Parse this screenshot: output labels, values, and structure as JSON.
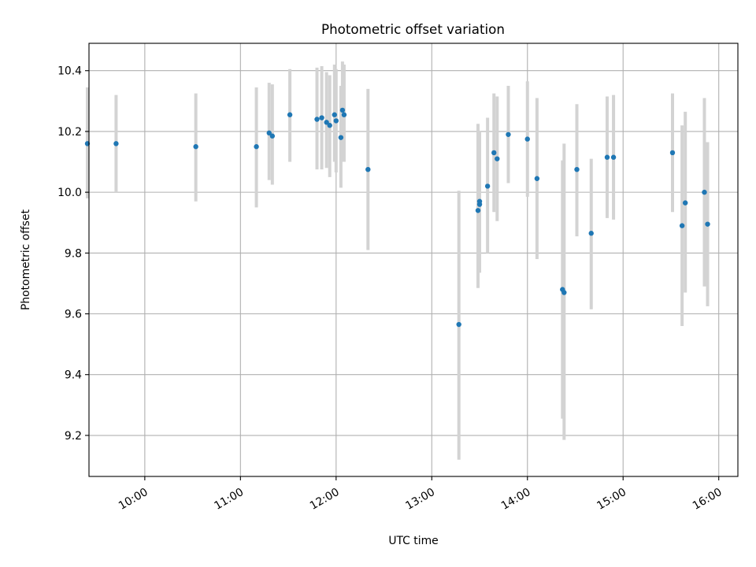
{
  "chart_data": {
    "type": "scatter",
    "title": "Photometric offset variation",
    "xlabel": "UTC time",
    "ylabel": "Photometric offset",
    "x_tick_labels": [
      "10:00",
      "11:00",
      "12:00",
      "13:00",
      "14:00",
      "15:00",
      "16:00"
    ],
    "x_ticks": [
      "10:00",
      "11:00",
      "12:00",
      "13:00",
      "14:00",
      "15:00",
      "16:00"
    ],
    "y_ticks": [
      9.2,
      9.4,
      9.6,
      9.8,
      10.0,
      10.2,
      10.4
    ],
    "y_tick_labels": [
      "9.2",
      "9.4",
      "9.6",
      "9.8",
      "10.0",
      "10.2",
      "10.4"
    ],
    "xlim": [
      "09:25",
      "16:12"
    ],
    "ylim": [
      9.065,
      10.49
    ],
    "grid": true,
    "marker_color": "#1f77b4",
    "errorbar_color": "#d3d3d3",
    "points": [
      {
        "time": "09:24",
        "offset": 10.16,
        "err_low": 9.98,
        "err_high": 10.345
      },
      {
        "time": "09:42",
        "offset": 10.16,
        "err_low": 10.0,
        "err_high": 10.32
      },
      {
        "time": "10:32",
        "offset": 10.15,
        "err_low": 9.97,
        "err_high": 10.325
      },
      {
        "time": "11:10",
        "offset": 10.15,
        "err_low": 9.95,
        "err_high": 10.345
      },
      {
        "time": "11:18",
        "offset": 10.195,
        "err_low": 10.04,
        "err_high": 10.36
      },
      {
        "time": "11:20",
        "offset": 10.185,
        "err_low": 10.025,
        "err_high": 10.355
      },
      {
        "time": "11:31",
        "offset": 10.255,
        "err_low": 10.1,
        "err_high": 10.405
      },
      {
        "time": "11:48",
        "offset": 10.24,
        "err_low": 10.075,
        "err_high": 10.41
      },
      {
        "time": "11:51",
        "offset": 10.245,
        "err_low": 10.075,
        "err_high": 10.415
      },
      {
        "time": "11:54",
        "offset": 10.23,
        "err_low": 10.08,
        "err_high": 10.395
      },
      {
        "time": "11:56",
        "offset": 10.22,
        "err_low": 10.05,
        "err_high": 10.385
      },
      {
        "time": "11:59",
        "offset": 10.255,
        "err_low": 10.1,
        "err_high": 10.42
      },
      {
        "time": "12:00",
        "offset": 10.235,
        "err_low": 10.065,
        "err_high": 10.405
      },
      {
        "time": "12:03",
        "offset": 10.18,
        "err_low": 10.015,
        "err_high": 10.35
      },
      {
        "time": "12:04",
        "offset": 10.27,
        "err_low": 10.1,
        "err_high": 10.43
      },
      {
        "time": "12:05",
        "offset": 10.255,
        "err_low": 10.1,
        "err_high": 10.42
      },
      {
        "time": "12:20",
        "offset": 10.075,
        "err_low": 9.81,
        "err_high": 10.34
      },
      {
        "time": "13:17",
        "offset": 9.565,
        "err_low": 9.12,
        "err_high": 10.005
      },
      {
        "time": "13:29",
        "offset": 9.94,
        "err_low": 9.685,
        "err_high": 10.225
      },
      {
        "time": "13:30",
        "offset": 9.96,
        "err_low": 9.735,
        "err_high": 10.195
      },
      {
        "time": "13:30",
        "offset": 9.97,
        "err_low": 9.745,
        "err_high": 10.2
      },
      {
        "time": "13:35",
        "offset": 10.02,
        "err_low": 9.8,
        "err_high": 10.245
      },
      {
        "time": "13:39",
        "offset": 10.13,
        "err_low": 9.935,
        "err_high": 10.325
      },
      {
        "time": "13:41",
        "offset": 10.11,
        "err_low": 9.905,
        "err_high": 10.315
      },
      {
        "time": "13:48",
        "offset": 10.19,
        "err_low": 10.03,
        "err_high": 10.35
      },
      {
        "time": "14:00",
        "offset": 10.175,
        "err_low": 9.985,
        "err_high": 10.365
      },
      {
        "time": "14:06",
        "offset": 10.045,
        "err_low": 9.78,
        "err_high": 10.31
      },
      {
        "time": "14:22",
        "offset": 9.68,
        "err_low": 9.255,
        "err_high": 10.105
      },
      {
        "time": "14:23",
        "offset": 9.67,
        "err_low": 9.185,
        "err_high": 10.16
      },
      {
        "time": "14:31",
        "offset": 10.075,
        "err_low": 9.855,
        "err_high": 10.29
      },
      {
        "time": "14:40",
        "offset": 9.865,
        "err_low": 9.615,
        "err_high": 10.11
      },
      {
        "time": "14:50",
        "offset": 10.115,
        "err_low": 9.915,
        "err_high": 10.315
      },
      {
        "time": "14:54",
        "offset": 10.115,
        "err_low": 9.91,
        "err_high": 10.32
      },
      {
        "time": "15:31",
        "offset": 10.13,
        "err_low": 9.935,
        "err_high": 10.325
      },
      {
        "time": "15:37",
        "offset": 9.89,
        "err_low": 9.56,
        "err_high": 10.22
      },
      {
        "time": "15:39",
        "offset": 9.965,
        "err_low": 9.67,
        "err_high": 10.265
      },
      {
        "time": "15:51",
        "offset": 10.0,
        "err_low": 9.69,
        "err_high": 10.31
      },
      {
        "time": "15:53",
        "offset": 9.895,
        "err_low": 9.625,
        "err_high": 10.165
      }
    ]
  }
}
